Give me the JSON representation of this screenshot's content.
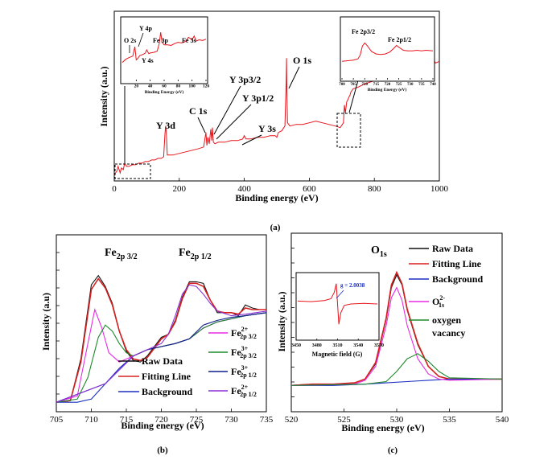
{
  "chart_data": [
    {
      "id": "a",
      "type": "line",
      "panel_label": "(a)",
      "xlabel": "Binding energy (eV)",
      "ylabel": "Intensity (a.u.)",
      "xlim": [
        0,
        1000
      ],
      "ylim": [
        0,
        100
      ],
      "xticks": [
        0,
        200,
        400,
        600,
        800,
        1000
      ],
      "series_color": "#e8141b",
      "series": [
        {
          "x": [
            0,
            8,
            12,
            18,
            22,
            28,
            32,
            38,
            45,
            55,
            65,
            75,
            85,
            95,
            105,
            115,
            125,
            135,
            145,
            152,
            156,
            158,
            160,
            163,
            170,
            180,
            200,
            220,
            240,
            260,
            275,
            282,
            285,
            288,
            292,
            297,
            300,
            302,
            305,
            310,
            320,
            340,
            360,
            380,
            395,
            400,
            405,
            420,
            440,
            460,
            480,
            495,
            500,
            505,
            515,
            525,
            529,
            530,
            531,
            533,
            540,
            560,
            580,
            600,
            620,
            640,
            660,
            680,
            695,
            705,
            708,
            711,
            715,
            718,
            722,
            725,
            728,
            735,
            750,
            770,
            800,
            830,
            860,
            880,
            900,
            930,
            960,
            975,
            980,
            983,
            988,
            1000
          ],
          "y": [
            3,
            5,
            8,
            4,
            7,
            6,
            10,
            8,
            8,
            9,
            9,
            10,
            10,
            11,
            11,
            12,
            12,
            13,
            13,
            14,
            28,
            33,
            30,
            15,
            15,
            15,
            16,
            17,
            18,
            19,
            20,
            29,
            21,
            26,
            22,
            31,
            24,
            32,
            23,
            22,
            23,
            23,
            24,
            24,
            25,
            27,
            25,
            25,
            26,
            26,
            27,
            27,
            26,
            29,
            30,
            33,
            62,
            75,
            55,
            35,
            33,
            34,
            34,
            35,
            36,
            35,
            34,
            33,
            32,
            35,
            46,
            41,
            48,
            49,
            51,
            52,
            54,
            56,
            57,
            59,
            61,
            63,
            65,
            67,
            68,
            70,
            71,
            72,
            80,
            74,
            72,
            73
          ]
        }
      ],
      "annotations": [
        "Y 3d",
        "C 1s",
        "Y 3p3/2",
        "Y 3p1/2",
        "Y 3s",
        "O 1s"
      ],
      "insets": [
        {
          "type": "line",
          "xlabel": "Binding Energy (eV)",
          "xlim": [
            0,
            120
          ],
          "ylim": [
            0,
            100
          ],
          "xticks": [
            20,
            40,
            60,
            80,
            100,
            120
          ],
          "x": [
            0,
            5,
            10,
            15,
            18,
            20,
            22,
            25,
            28,
            30,
            33,
            35,
            38,
            40,
            45,
            50,
            53,
            55,
            57,
            60,
            65,
            70,
            75,
            80,
            85,
            90,
            95,
            100,
            103,
            106,
            110,
            115,
            120
          ],
          "y": [
            30,
            35,
            38,
            40,
            55,
            34,
            36,
            41,
            42,
            43,
            45,
            50,
            44,
            45,
            46,
            48,
            60,
            78,
            62,
            58,
            58,
            57,
            60,
            62,
            61,
            63,
            70,
            66,
            72,
            64,
            66,
            65,
            67
          ],
          "annotations": [
            "O 2s",
            "Y 4p",
            "Y 4s",
            "Fe 3p",
            "Fe 3s"
          ]
        },
        {
          "type": "line",
          "xlabel": "Binding Energy (eV)",
          "xlim": [
            700,
            740
          ],
          "ylim": [
            0,
            100
          ],
          "xticks": [
            700,
            705,
            710,
            715,
            720,
            725,
            730,
            735,
            740
          ],
          "x": [
            700,
            703,
            705,
            707,
            708,
            709,
            710,
            711,
            713,
            715,
            717,
            719,
            721,
            723,
            724,
            725,
            727,
            729,
            731,
            733,
            735,
            737,
            740
          ],
          "y": [
            30,
            31,
            32,
            34,
            40,
            55,
            60,
            56,
            46,
            42,
            41,
            42,
            45,
            52,
            56,
            53,
            48,
            47,
            47,
            48,
            47,
            48,
            47
          ],
          "annotations": [
            "Fe 2p3/2",
            "Fe 2p1/2"
          ]
        }
      ]
    },
    {
      "id": "b",
      "type": "line",
      "panel_label": "(b)",
      "xlabel": "Binding energy (eV)",
      "ylabel": "Intensity (a.u)",
      "xlim": [
        705,
        735
      ],
      "ylim": [
        0,
        100
      ],
      "xticks": [
        705,
        710,
        715,
        720,
        725,
        730,
        735
      ],
      "peak_labels": [
        {
          "base": "Fe",
          "sub": "2p 3/2"
        },
        {
          "base": "Fe",
          "sub": "2p 1/2"
        }
      ],
      "series": [
        {
          "name": "Raw Data",
          "color": "#111111",
          "x": [
            705,
            707,
            708.5,
            710,
            711,
            712,
            713,
            714,
            715,
            716,
            717,
            718,
            719,
            720,
            721,
            722,
            723,
            724,
            725,
            726,
            727,
            728,
            729,
            730,
            731,
            732,
            733,
            734,
            735
          ],
          "y": [
            2,
            3,
            30,
            78,
            84,
            77,
            66,
            48,
            35,
            29,
            28,
            32,
            38,
            44,
            46,
            55,
            70,
            80,
            80,
            79,
            68,
            60,
            60,
            60,
            58,
            65,
            63,
            62,
            62
          ]
        },
        {
          "name": "Fitting Line",
          "color": "#d62020",
          "x": [
            705,
            707,
            708.5,
            710,
            711,
            712,
            713,
            714,
            715,
            716,
            717,
            718,
            719,
            720,
            721,
            722,
            723,
            724,
            725,
            726,
            727,
            728,
            729,
            730,
            731,
            732,
            733,
            734,
            735
          ],
          "y": [
            2,
            3,
            28,
            75,
            82,
            76,
            65,
            48,
            36,
            30,
            29,
            31,
            37,
            43,
            46,
            54,
            69,
            79,
            79,
            77,
            68,
            61,
            60,
            60,
            59,
            63,
            62,
            62,
            62
          ]
        },
        {
          "name": "Background",
          "color": "#1c2fc4",
          "x": [
            705,
            708,
            710,
            712,
            714,
            716,
            718,
            720,
            722,
            724,
            726,
            728,
            730,
            732,
            735
          ],
          "y": [
            2,
            2,
            4,
            14,
            24,
            32,
            36,
            38,
            40,
            43,
            50,
            54,
            56,
            58,
            60
          ]
        },
        {
          "name": "Fe2+ 2p 3/2",
          "color": "#e52ce5",
          "x": [
            705,
            708,
            709.5,
            710.5,
            711.5,
            712.5,
            714,
            716,
            718,
            720,
            722,
            724,
            726,
            728,
            730,
            732,
            735
          ],
          "y": [
            2,
            6,
            40,
            62,
            50,
            34,
            28,
            32,
            36,
            38,
            40,
            43,
            50,
            54,
            56,
            58,
            60
          ]
        },
        {
          "name": "Fe3+ 2p 3/2",
          "color": "#1f8a2b",
          "x": [
            705,
            708,
            709.5,
            711,
            712,
            713,
            714,
            715,
            716,
            718,
            720,
            722,
            724,
            726,
            728,
            730,
            732,
            735
          ],
          "y": [
            2,
            4,
            18,
            44,
            52,
            48,
            40,
            34,
            32,
            36,
            38,
            40,
            43,
            50,
            54,
            56,
            58,
            60
          ]
        },
        {
          "name": "Fe3+ 2p 1/2",
          "color": "#0d1f8a",
          "x": [
            705,
            712,
            716,
            718,
            720,
            722,
            724,
            726,
            728,
            730,
            732,
            735
          ],
          "y": [
            2,
            14,
            32,
            36,
            38,
            40,
            43,
            52,
            55,
            57,
            58,
            60
          ]
        },
        {
          "name": "Fe2+ 2p 1/2",
          "color": "#8b2fd6",
          "x": [
            705,
            712,
            716,
            718,
            720,
            721,
            722,
            723,
            724,
            725,
            726,
            727,
            728,
            730,
            732,
            735
          ],
          "y": [
            2,
            14,
            32,
            36,
            40,
            46,
            58,
            72,
            78,
            77,
            72,
            66,
            61,
            58,
            59,
            61
          ]
        }
      ],
      "legend_main": [
        "Raw Data",
        "Fitting Line",
        "Background"
      ],
      "legend_components": [
        {
          "base": "Fe",
          "sup": "2+",
          "sub": "2p 3/2",
          "color": "#e52ce5"
        },
        {
          "base": "Fe",
          "sup": "3+",
          "sub": "2p 3/2",
          "color": "#1f8a2b"
        },
        {
          "base": "Fe",
          "sup": "3+",
          "sub": "2p 1/2",
          "color": "#0d1f8a"
        },
        {
          "base": "Fe",
          "sup": "2+",
          "sub": "2p 1/2",
          "color": "#8b2fd6"
        }
      ]
    },
    {
      "id": "c",
      "type": "line",
      "panel_label": "(c)",
      "xlabel": "Binding energy (eV)",
      "ylabel": "Intensity (a.u.)",
      "xlim": [
        520,
        540
      ],
      "ylim": [
        0,
        100
      ],
      "xticks": [
        520,
        525,
        530,
        535,
        540
      ],
      "peak_label": {
        "base": "O",
        "sub": "1s"
      },
      "series": [
        {
          "name": "Raw Data",
          "color": "#111111",
          "x": [
            520,
            522,
            524,
            526,
            527,
            528,
            529,
            529.5,
            530,
            530.5,
            531,
            532,
            533,
            534,
            535,
            537,
            540
          ],
          "y": [
            3,
            4,
            4,
            5,
            8,
            20,
            55,
            80,
            90,
            82,
            62,
            35,
            18,
            10,
            8,
            8,
            8
          ]
        },
        {
          "name": "Fitting Line",
          "color": "#d62020",
          "x": [
            520,
            522,
            524,
            526,
            527,
            528,
            529,
            529.5,
            530,
            530.5,
            531,
            532,
            533,
            534,
            535,
            537,
            540
          ],
          "y": [
            3,
            4,
            4,
            5,
            8,
            21,
            56,
            82,
            92,
            83,
            63,
            36,
            18,
            10,
            8,
            8,
            8
          ]
        },
        {
          "name": "Background",
          "color": "#1c2fc4",
          "x": [
            520,
            524,
            527,
            529,
            531,
            533,
            535,
            537,
            540
          ],
          "y": [
            3,
            3,
            4,
            5,
            6,
            7,
            8,
            8,
            8
          ]
        },
        {
          "name": "O2- 1s",
          "color": "#e52ce5",
          "x": [
            520,
            526,
            527,
            528,
            529,
            529.5,
            530,
            530.5,
            531,
            532,
            533,
            534,
            535,
            540
          ],
          "y": [
            3,
            4,
            7,
            18,
            50,
            72,
            80,
            70,
            50,
            24,
            12,
            8,
            7,
            8
          ]
        },
        {
          "name": "oxygen vacancy",
          "color": "#1f8a2b",
          "x": [
            520,
            527,
            529,
            530,
            531,
            532,
            533,
            534,
            535,
            540
          ],
          "y": [
            3,
            4,
            6,
            14,
            24,
            28,
            22,
            14,
            9,
            8
          ]
        }
      ],
      "legend": [
        {
          "label": "Raw Data",
          "color": "#111111"
        },
        {
          "label": "Fitting Line",
          "color": "#d62020"
        },
        {
          "label": "Background",
          "color": "#1c2fc4"
        },
        {
          "base": "O",
          "sup": "2-",
          "sub": "1s",
          "color": "#e52ce5"
        },
        {
          "label": "oxygen vacancy",
          "color": "#1f8a2b"
        }
      ],
      "inset": {
        "type": "line",
        "xlabel": "Magnetic field (G)",
        "xticks": [
          3450,
          3480,
          3510,
          3540,
          3570
        ],
        "xlim": [
          3450,
          3570
        ],
        "ylim": [
          -100,
          100
        ],
        "annotation": "g = 2.0038",
        "color": "#e8141b",
        "x": [
          3450,
          3470,
          3490,
          3500,
          3505,
          3508,
          3510,
          3512,
          3515,
          3520,
          3530,
          3550,
          3570
        ],
        "y": [
          10,
          8,
          12,
          18,
          40,
          70,
          0,
          -70,
          -30,
          -5,
          0,
          2,
          0
        ]
      }
    }
  ]
}
